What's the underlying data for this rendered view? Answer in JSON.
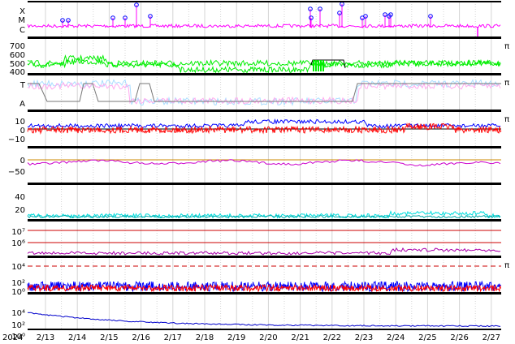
{
  "chart_data": {
    "type": "line",
    "title": "",
    "xaxis": {
      "year_label": "2024",
      "ticks": [
        "2/13",
        "2/14",
        "2/15",
        "2/16",
        "2/17",
        "2/18",
        "2/19",
        "2/20",
        "2/21",
        "2/22",
        "2/23",
        "2/24",
        "2/25",
        "2/26",
        "2/27"
      ],
      "range": [
        "2024-02-12T12:00",
        "2024-02-27T18:00"
      ]
    },
    "grid": true,
    "panels": [
      {
        "id": "p1",
        "scale": "category",
        "ticks": [
          "X",
          "M",
          "C"
        ],
        "colors": [
          "#ff00ff",
          "#0000ff"
        ],
        "right_label": ""
      },
      {
        "id": "p2",
        "scale": "linear",
        "ylim": [
          300,
          750
        ],
        "ticks": [
          "700",
          "600",
          "500",
          "400"
        ],
        "colors": [
          "#00ee00",
          "#000000"
        ],
        "right_label": "π"
      },
      {
        "id": "p3",
        "scale": "category",
        "ticks": [
          "T",
          "A"
        ],
        "colors": [
          "#aaddff",
          "#ffaaee",
          "#777777"
        ],
        "right_label": "π"
      },
      {
        "id": "p4",
        "scale": "linear",
        "ylim": [
          -15,
          15
        ],
        "ticks": [
          "10",
          "0",
          "−10"
        ],
        "colors": [
          "#0000ff",
          "#ff0000",
          "#000000"
        ],
        "right_label": "π"
      },
      {
        "id": "p5",
        "scale": "linear",
        "ylim": [
          -85,
          25
        ],
        "ticks": [
          "0",
          "−50"
        ],
        "colors": [
          "#cc00cc",
          "#cc8800"
        ],
        "right_label": ""
      },
      {
        "id": "p6",
        "scale": "linear",
        "ylim": [
          0,
          52
        ],
        "ticks": [
          "40",
          "20"
        ],
        "colors": [
          "#00dddd",
          "#00aaaa"
        ],
        "right_label": ""
      },
      {
        "id": "p7",
        "scale": "log",
        "ticks": [
          "10⁷",
          "10⁶"
        ],
        "colors": [
          "#cc0000",
          "#aa00aa"
        ],
        "right_label": ""
      },
      {
        "id": "p8",
        "scale": "log",
        "ticks": [
          "10⁴",
          "10²",
          "10⁰"
        ],
        "colors": [
          "#0000ff",
          "#ff0000",
          "#cc0000"
        ],
        "right_label": "π"
      },
      {
        "id": "p9",
        "scale": "log",
        "ticks": [
          "10⁴",
          "10²",
          "10⁰"
        ],
        "colors": [
          "#0000cc"
        ],
        "right_label": ""
      }
    ]
  }
}
